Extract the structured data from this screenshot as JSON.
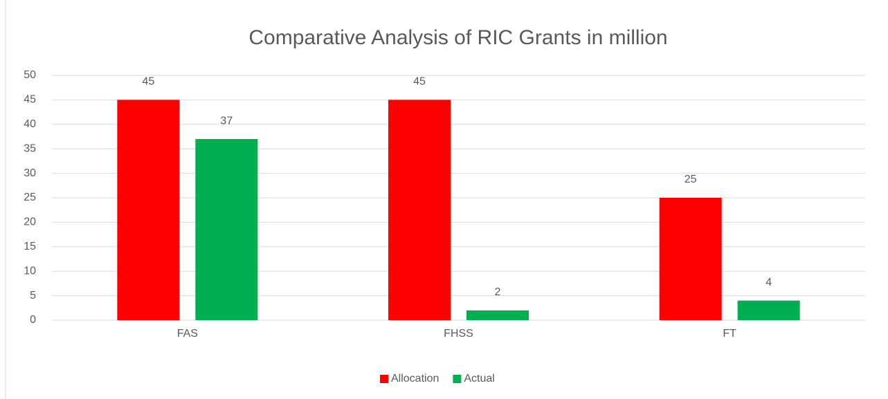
{
  "chart_data": {
    "type": "bar",
    "title": "Comparative Analysis of RIC Grants in million",
    "categories": [
      "FAS",
      "FHSS",
      "FT"
    ],
    "series": [
      {
        "name": "Allocation",
        "color": "#ff0000",
        "values": [
          45,
          45,
          25
        ]
      },
      {
        "name": "Actual",
        "color": "#00b050",
        "values": [
          37,
          2,
          4
        ]
      }
    ],
    "ylim": [
      0,
      50
    ],
    "yticks": [
      0,
      5,
      10,
      15,
      20,
      25,
      30,
      35,
      40,
      45,
      50
    ],
    "grid": true,
    "legend": "bottom"
  }
}
